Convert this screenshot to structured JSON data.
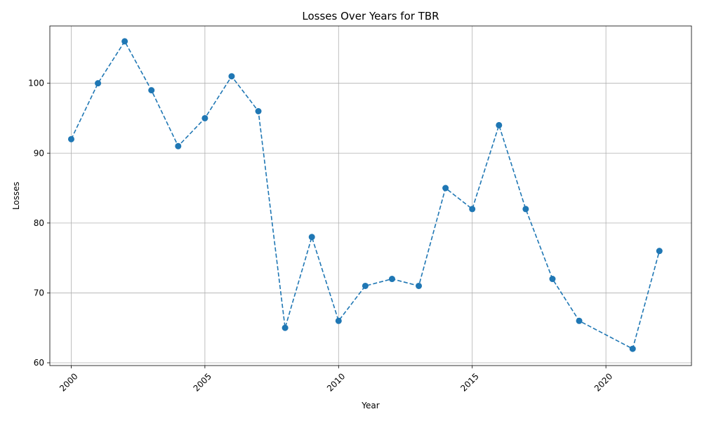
{
  "chart_data": {
    "type": "line",
    "title": "Losses Over Years for TBR",
    "xlabel": "Year",
    "ylabel": "Losses",
    "xlim": [
      1999.2,
      2023.2
    ],
    "ylim": [
      59.6,
      108.2
    ],
    "xticks": [
      2000,
      2005,
      2010,
      2015,
      2020
    ],
    "yticks": [
      60,
      70,
      80,
      90,
      100
    ],
    "grid": true,
    "series": [
      {
        "color": "#1f77b4",
        "linestyle": "dashed",
        "marker": "circle",
        "points": [
          {
            "x": 2000,
            "y": 92
          },
          {
            "x": 2001,
            "y": 100
          },
          {
            "x": 2002,
            "y": 106
          },
          {
            "x": 2003,
            "y": 99
          },
          {
            "x": 2004,
            "y": 91
          },
          {
            "x": 2005,
            "y": 95
          },
          {
            "x": 2006,
            "y": 101
          },
          {
            "x": 2007,
            "y": 96
          },
          {
            "x": 2008,
            "y": 65
          },
          {
            "x": 2009,
            "y": 78
          },
          {
            "x": 2010,
            "y": 66
          },
          {
            "x": 2011,
            "y": 71
          },
          {
            "x": 2012,
            "y": 72
          },
          {
            "x": 2013,
            "y": 71
          },
          {
            "x": 2014,
            "y": 85
          },
          {
            "x": 2015,
            "y": 82
          },
          {
            "x": 2016,
            "y": 94
          },
          {
            "x": 2017,
            "y": 82
          },
          {
            "x": 2018,
            "y": 72
          },
          {
            "x": 2019,
            "y": 66
          },
          {
            "x": 2021,
            "y": 62
          },
          {
            "x": 2022,
            "y": 76
          }
        ]
      }
    ]
  }
}
